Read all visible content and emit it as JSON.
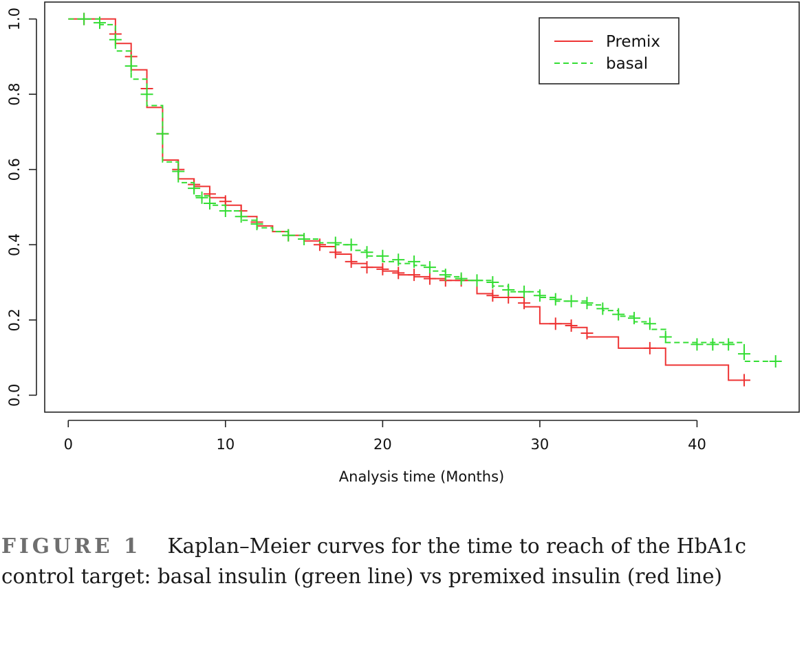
{
  "chart_data": {
    "type": "line",
    "xlabel": "Analysis time (Months)",
    "ylabel": "",
    "xlim": [
      -1.5,
      46.5
    ],
    "ylim": [
      -0.045,
      1.045
    ],
    "x_ticks": [
      0,
      10,
      20,
      30,
      40
    ],
    "x_tick_labels": [
      "0",
      "10",
      "20",
      "30",
      "40"
    ],
    "y_ticks": [
      0.0,
      0.2,
      0.4,
      0.6,
      0.8,
      1.0
    ],
    "y_tick_labels": [
      "0.0",
      "0.2",
      "0.4",
      "0.6",
      "0.8",
      "1.0"
    ],
    "grid": false,
    "legend_position": "top-right",
    "series": [
      {
        "name": "Premix",
        "color": "#ee3333",
        "dash": "solid",
        "steps": [
          [
            0,
            1.0
          ],
          [
            3,
            0.935
          ],
          [
            4,
            0.865
          ],
          [
            5,
            0.765
          ],
          [
            6,
            0.625
          ],
          [
            7,
            0.575
          ],
          [
            8,
            0.555
          ],
          [
            9,
            0.525
          ],
          [
            10,
            0.505
          ],
          [
            11,
            0.475
          ],
          [
            12,
            0.45
          ],
          [
            13,
            0.435
          ],
          [
            14,
            0.425
          ],
          [
            15,
            0.41
          ],
          [
            16,
            0.395
          ],
          [
            17,
            0.375
          ],
          [
            18,
            0.35
          ],
          [
            19,
            0.34
          ],
          [
            20,
            0.33
          ],
          [
            21,
            0.32
          ],
          [
            22,
            0.315
          ],
          [
            23,
            0.31
          ],
          [
            24,
            0.305
          ],
          [
            26,
            0.27
          ],
          [
            27,
            0.26
          ],
          [
            29,
            0.235
          ],
          [
            30,
            0.19
          ],
          [
            32,
            0.18
          ],
          [
            33,
            0.155
          ],
          [
            35,
            0.125
          ],
          [
            38,
            0.08
          ],
          [
            42,
            0.04
          ],
          [
            43,
            0.04
          ]
        ],
        "censored": [
          [
            1,
            1.0
          ],
          [
            3,
            0.96
          ],
          [
            4,
            0.9
          ],
          [
            5,
            0.815
          ],
          [
            6,
            0.695
          ],
          [
            7,
            0.6
          ],
          [
            8,
            0.56
          ],
          [
            9,
            0.535
          ],
          [
            10,
            0.515
          ],
          [
            11,
            0.49
          ],
          [
            12,
            0.46
          ],
          [
            14,
            0.425
          ],
          [
            16,
            0.4
          ],
          [
            17,
            0.38
          ],
          [
            18,
            0.355
          ],
          [
            19,
            0.34
          ],
          [
            20,
            0.335
          ],
          [
            21,
            0.325
          ],
          [
            22,
            0.32
          ],
          [
            23,
            0.31
          ],
          [
            24,
            0.305
          ],
          [
            25,
            0.305
          ],
          [
            27,
            0.265
          ],
          [
            28,
            0.26
          ],
          [
            29,
            0.245
          ],
          [
            31,
            0.19
          ],
          [
            32,
            0.185
          ],
          [
            33,
            0.165
          ],
          [
            37,
            0.125
          ],
          [
            43,
            0.04
          ]
        ]
      },
      {
        "name": "basal",
        "color": "#33dd33",
        "dash": "dashed",
        "steps": [
          [
            0,
            1.0
          ],
          [
            2,
            0.985
          ],
          [
            3,
            0.915
          ],
          [
            4,
            0.84
          ],
          [
            5,
            0.77
          ],
          [
            6,
            0.62
          ],
          [
            7,
            0.565
          ],
          [
            8,
            0.53
          ],
          [
            9,
            0.505
          ],
          [
            10,
            0.49
          ],
          [
            11,
            0.465
          ],
          [
            12,
            0.445
          ],
          [
            13,
            0.435
          ],
          [
            14,
            0.425
          ],
          [
            15,
            0.415
          ],
          [
            16,
            0.405
          ],
          [
            17,
            0.4
          ],
          [
            18,
            0.385
          ],
          [
            19,
            0.37
          ],
          [
            20,
            0.355
          ],
          [
            21,
            0.35
          ],
          [
            22,
            0.345
          ],
          [
            23,
            0.33
          ],
          [
            24,
            0.315
          ],
          [
            25,
            0.305
          ],
          [
            27,
            0.29
          ],
          [
            28,
            0.275
          ],
          [
            30,
            0.26
          ],
          [
            31,
            0.25
          ],
          [
            33,
            0.24
          ],
          [
            34,
            0.225
          ],
          [
            35,
            0.21
          ],
          [
            36,
            0.195
          ],
          [
            37,
            0.175
          ],
          [
            38,
            0.14
          ],
          [
            43,
            0.09
          ],
          [
            45,
            0.09
          ]
        ],
        "censored": [
          [
            1,
            1.0
          ],
          [
            2,
            0.99
          ],
          [
            3,
            0.945
          ],
          [
            4,
            0.875
          ],
          [
            5,
            0.8
          ],
          [
            6,
            0.695
          ],
          [
            7,
            0.595
          ],
          [
            8,
            0.55
          ],
          [
            8.5,
            0.525
          ],
          [
            9,
            0.51
          ],
          [
            10,
            0.49
          ],
          [
            11,
            0.475
          ],
          [
            12,
            0.455
          ],
          [
            14,
            0.425
          ],
          [
            15,
            0.415
          ],
          [
            17,
            0.405
          ],
          [
            18,
            0.4
          ],
          [
            19,
            0.38
          ],
          [
            20,
            0.37
          ],
          [
            21,
            0.36
          ],
          [
            22,
            0.355
          ],
          [
            23,
            0.34
          ],
          [
            24,
            0.32
          ],
          [
            25,
            0.31
          ],
          [
            26,
            0.305
          ],
          [
            27,
            0.3
          ],
          [
            28,
            0.28
          ],
          [
            29,
            0.275
          ],
          [
            30,
            0.265
          ],
          [
            31,
            0.255
          ],
          [
            32,
            0.25
          ],
          [
            33,
            0.245
          ],
          [
            34,
            0.23
          ],
          [
            35,
            0.215
          ],
          [
            36,
            0.205
          ],
          [
            37,
            0.19
          ],
          [
            38,
            0.155
          ],
          [
            40,
            0.135
          ],
          [
            41,
            0.135
          ],
          [
            42,
            0.135
          ],
          [
            43,
            0.11
          ],
          [
            45,
            0.09
          ]
        ]
      }
    ]
  },
  "caption": {
    "label": "FIGURE 1",
    "text": "Kaplan–Meier curves for the time to reach of the HbA1c control target: basal insulin (green line) vs premixed insulin (red line)"
  }
}
